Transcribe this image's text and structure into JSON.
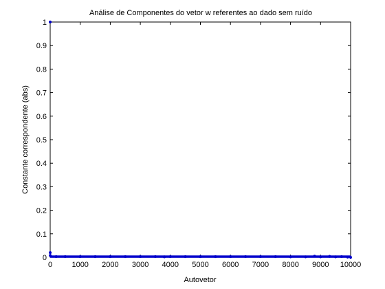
{
  "chart_data": {
    "type": "scatter",
    "title": "Análise de Componentes do vetor w referentes ao dado sem ruído",
    "xlabel": "Autovetor",
    "ylabel": "Constante correspondente (abs)",
    "xlim": [
      0,
      10000
    ],
    "ylim": [
      0,
      1
    ],
    "xticks": [
      0,
      1000,
      2000,
      3000,
      4000,
      5000,
      6000,
      7000,
      8000,
      9000,
      10000
    ],
    "yticks": [
      0,
      0.1,
      0.2,
      0.3,
      0.4,
      0.5,
      0.6,
      0.7,
      0.8,
      0.9,
      1
    ],
    "xtick_labels": [
      "0",
      "1000",
      "2000",
      "3000",
      "4000",
      "5000",
      "6000",
      "7000",
      "8000",
      "9000",
      "10000"
    ],
    "ytick_labels": [
      "0",
      "0.1",
      "0.2",
      "0.3",
      "0.4",
      "0.5",
      "0.6",
      "0.7",
      "0.8",
      "0.9",
      "1"
    ],
    "grid": false,
    "marker_color": "#0000cc",
    "points": [
      {
        "x": 1,
        "y": 1.0
      },
      {
        "x": 1,
        "y": 0.02
      },
      {
        "x": 1,
        "y": 0.008
      },
      {
        "x": 200,
        "y": 0.003
      },
      {
        "x": 500,
        "y": 0.003
      },
      {
        "x": 1000,
        "y": 0.003
      },
      {
        "x": 1500,
        "y": 0.003
      },
      {
        "x": 2000,
        "y": 0.003
      },
      {
        "x": 2500,
        "y": 0.003
      },
      {
        "x": 3000,
        "y": 0.003
      },
      {
        "x": 3500,
        "y": 0.003
      },
      {
        "x": 3800,
        "y": 0.002
      },
      {
        "x": 4000,
        "y": 0.003
      },
      {
        "x": 4500,
        "y": 0.003
      },
      {
        "x": 5000,
        "y": 0.003
      },
      {
        "x": 5500,
        "y": 0.003
      },
      {
        "x": 6000,
        "y": 0.003
      },
      {
        "x": 6500,
        "y": 0.003
      },
      {
        "x": 7000,
        "y": 0.003
      },
      {
        "x": 7500,
        "y": 0.003
      },
      {
        "x": 8000,
        "y": 0.002
      },
      {
        "x": 8500,
        "y": 0.002
      },
      {
        "x": 8800,
        "y": 0.005
      },
      {
        "x": 9000,
        "y": 0.002
      },
      {
        "x": 9300,
        "y": 0.004
      },
      {
        "x": 9500,
        "y": 0.002
      },
      {
        "x": 9700,
        "y": 0.003
      },
      {
        "x": 9900,
        "y": 0.001
      },
      {
        "x": 10000,
        "y": 0.0
      }
    ]
  }
}
